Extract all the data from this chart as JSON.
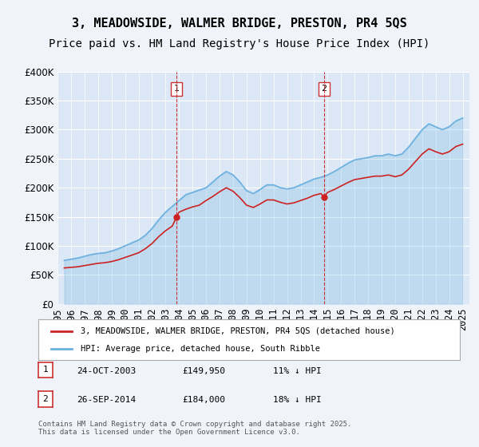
{
  "title": "3, MEADOWSIDE, WALMER BRIDGE, PRESTON, PR4 5QS",
  "subtitle": "Price paid vs. HM Land Registry's House Price Index (HPI)",
  "ylabel": "",
  "ylim": [
    0,
    400000
  ],
  "yticks": [
    0,
    50000,
    100000,
    150000,
    200000,
    250000,
    300000,
    350000,
    400000
  ],
  "bg_color": "#f0f4fa",
  "plot_bg": "#dce8f5",
  "grid_color": "#ffffff",
  "hpi_color": "#6ab0e0",
  "price_color": "#cc2222",
  "vline_color": "#cc3333",
  "marker1_year": 2003.82,
  "marker2_year": 2014.74,
  "legend_label1": "3, MEADOWSIDE, WALMER BRIDGE, PRESTON, PR4 5QS (detached house)",
  "legend_label2": "HPI: Average price, detached house, South Ribble",
  "annotation1_box": "1",
  "annotation2_box": "2",
  "table_row1": [
    "1",
    "24-OCT-2003",
    "£149,950",
    "11% ↓ HPI"
  ],
  "table_row2": [
    "2",
    "26-SEP-2014",
    "£184,000",
    "18% ↓ HPI"
  ],
  "footer": "Contains HM Land Registry data © Crown copyright and database right 2025.\nThis data is licensed under the Open Government Licence v3.0.",
  "title_fontsize": 11,
  "subtitle_fontsize": 10,
  "tick_fontsize": 8.5
}
